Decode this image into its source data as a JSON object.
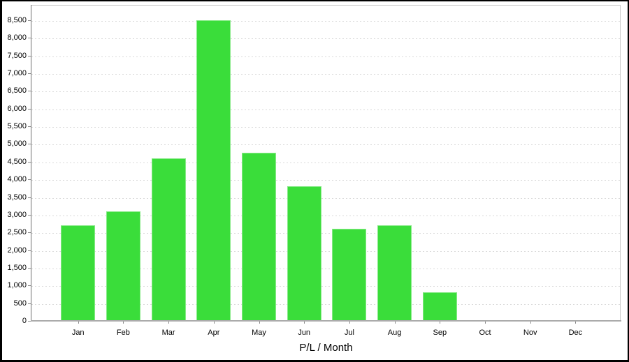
{
  "chart_data": {
    "type": "bar",
    "title": "P/L / Month",
    "xlabel": "P/L / Month",
    "ylabel": "",
    "categories": [
      "Jan",
      "Feb",
      "Mar",
      "Apr",
      "May",
      "Jun",
      "Jul",
      "Aug",
      "Sep",
      "Oct",
      "Nov",
      "Dec"
    ],
    "values": [
      2700,
      3100,
      4600,
      8500,
      4750,
      3800,
      2600,
      2700,
      800,
      0,
      0,
      0
    ],
    "series_name": "P/L",
    "ylim": [
      0,
      8500
    ],
    "ytick_step": 500,
    "ytick_labels": [
      "0",
      "500",
      "1,000",
      "1,500",
      "2,000",
      "2,500",
      "3,000",
      "3,500",
      "4,000",
      "4,500",
      "5,000",
      "5,500",
      "6,000",
      "6,500",
      "7,000",
      "7,500",
      "8,000",
      "8,500"
    ],
    "grid": "horizontal-dashed",
    "legend": "none",
    "bar_color": "#3ADD3A",
    "bar_border_color": "#87EA87",
    "gridline_color": "#d9d9d9",
    "axis_color": "#6e6e6e",
    "frame_color": "#000000"
  }
}
